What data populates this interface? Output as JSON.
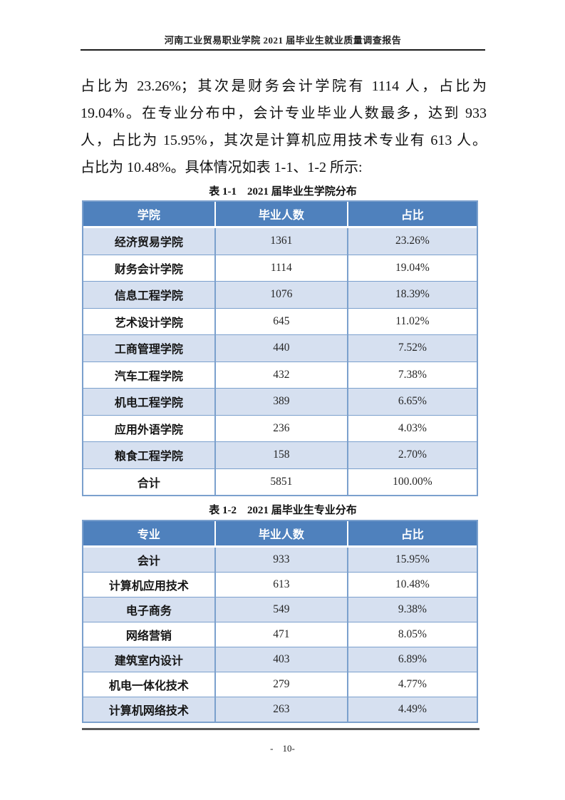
{
  "page": {
    "header_title": "河南工业贸易职业学院 2021 届毕业生就业质量调查报告",
    "footer_page_number": "-　10-"
  },
  "paragraph": {
    "lines": [
      "占比为 23.26%；其次是财务会计学院有 1114 人，占比为",
      "19.04%。在专业分布中，会计专业毕业人数最多，达到 933",
      "人，占比为 15.95%，其次是计算机应用技术专业有 613 人。",
      "占比为 10.48%。具体情况如表 1-1、1-2 所示:"
    ]
  },
  "tables": [
    {
      "caption": "表 1-1　2021 届毕业生学院分布",
      "columns": [
        "学院",
        "毕业人数",
        "占比"
      ],
      "rows": [
        [
          "经济贸易学院",
          "1361",
          "23.26%"
        ],
        [
          "财务会计学院",
          "1114",
          "19.04%"
        ],
        [
          "信息工程学院",
          "1076",
          "18.39%"
        ],
        [
          "艺术设计学院",
          "645",
          "11.02%"
        ],
        [
          "工商管理学院",
          "440",
          "7.52%"
        ],
        [
          "汽车工程学院",
          "432",
          "7.38%"
        ],
        [
          "机电工程学院",
          "389",
          "6.65%"
        ],
        [
          "应用外语学院",
          "236",
          "4.03%"
        ],
        [
          "粮食工程学院",
          "158",
          "2.70%"
        ],
        [
          "合计",
          "5851",
          "100.00%"
        ]
      ]
    },
    {
      "caption": "表 1-2　2021 届毕业生专业分布",
      "columns": [
        "专业",
        "毕业人数",
        "占比"
      ],
      "rows": [
        [
          "会计",
          "933",
          "15.95%"
        ],
        [
          "计算机应用技术",
          "613",
          "10.48%"
        ],
        [
          "电子商务",
          "549",
          "9.38%"
        ],
        [
          "网络营销",
          "471",
          "8.05%"
        ],
        [
          "建筑室内设计",
          "403",
          "6.89%"
        ],
        [
          "机电一体化技术",
          "279",
          "4.77%"
        ],
        [
          "计算机网络技术",
          "263",
          "4.49%"
        ]
      ]
    }
  ],
  "colors": {
    "table_header_bg": "#4F81BD",
    "table_alt_row_bg": "#D6E0F0",
    "table_border": "#7BA0CD",
    "header_rule": "#1C1C1C",
    "page_cut_line": "#595959"
  }
}
